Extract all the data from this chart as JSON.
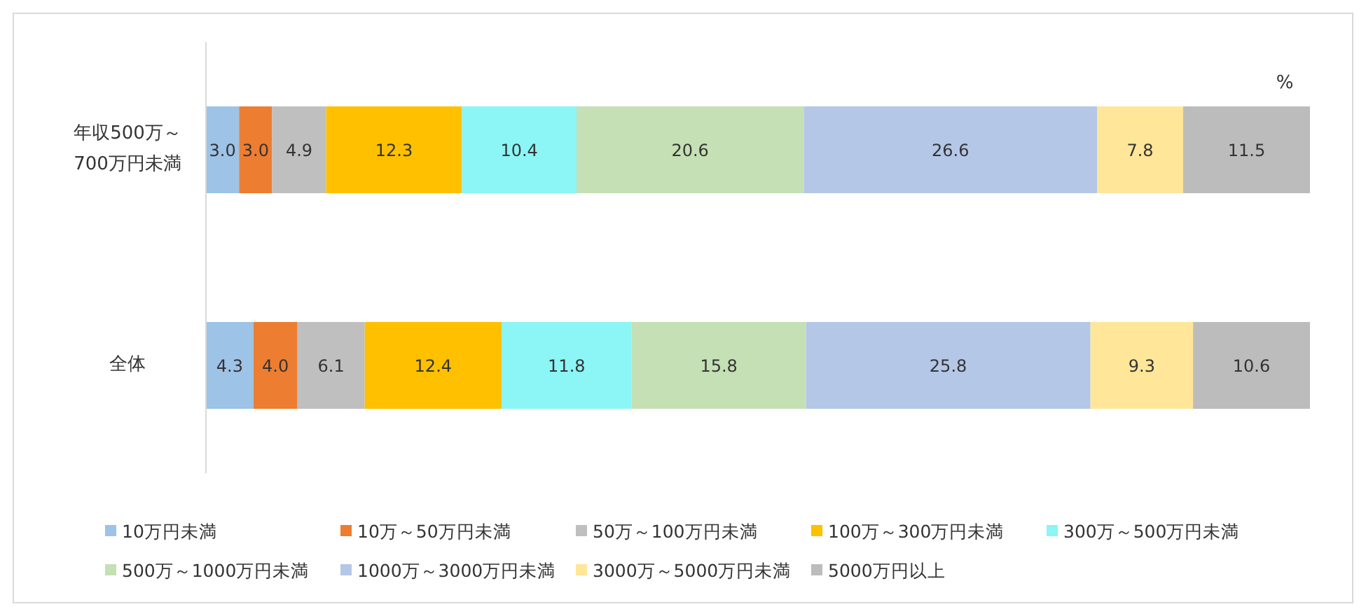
{
  "chart_data": {
    "type": "bar",
    "orientation": "horizontal",
    "stacked": true,
    "legend": "bottom",
    "tick_labels": "y",
    "categories": [
      "年収500万～700万円未満",
      "全体"
    ],
    "annotations": [
      "%"
    ],
    "series": [
      {
        "name": "10万円未満",
        "color": "#9dc3e6",
        "values": [
          3.0,
          4.3
        ],
        "value_labels": [
          "3.0",
          "4.3"
        ]
      },
      {
        "name": "10万～50万円未満",
        "color": "#ed7d31",
        "values": [
          3.0,
          4.0
        ],
        "value_labels": [
          "3.0",
          "4.0"
        ]
      },
      {
        "name": "50万～100万円未満",
        "color": "#bfbfbf",
        "values": [
          4.9,
          6.1
        ],
        "value_labels": [
          "4.9",
          "6.1"
        ]
      },
      {
        "name": "100万～300万円未満",
        "color": "#ffc000",
        "values": [
          12.3,
          12.4
        ],
        "value_labels": [
          "12.3",
          "12.4"
        ]
      },
      {
        "name": "300万～500万円未満",
        "color": "#8cf5f5",
        "values": [
          10.4,
          11.8
        ],
        "value_labels": [
          "10.4",
          "11.8"
        ]
      },
      {
        "name": "500万～1000万円未満",
        "color": "#c5e0b4",
        "values": [
          20.6,
          15.8
        ],
        "value_labels": [
          "20.6",
          "15.8"
        ]
      },
      {
        "name": "1000万～3000万円未満",
        "color": "#b4c7e7",
        "values": [
          26.6,
          25.8
        ],
        "value_labels": [
          "26.6",
          "25.8"
        ]
      },
      {
        "name": "3000万～5000万円未満",
        "color": "#ffe699",
        "values": [
          7.8,
          9.3
        ],
        "value_labels": [
          "7.8",
          "9.3"
        ]
      },
      {
        "name": "5000万円以上",
        "color": "#bcbcbc",
        "values": [
          11.5,
          10.6
        ],
        "value_labels": [
          "11.5",
          "10.6"
        ]
      }
    ]
  }
}
